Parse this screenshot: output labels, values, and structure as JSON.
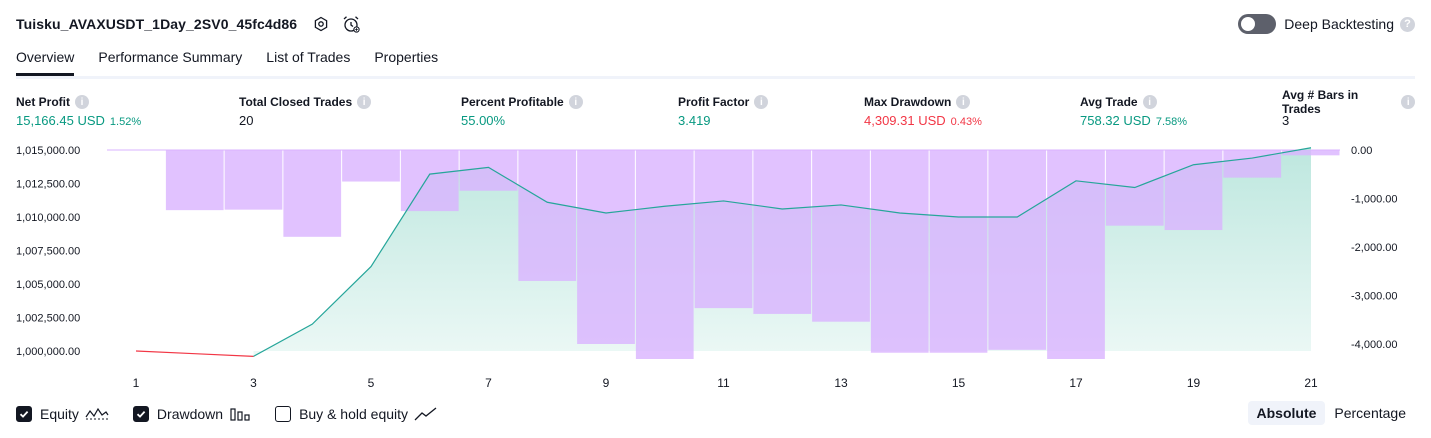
{
  "header": {
    "title": "Tuisku_AVAXUSDT_1Day_2SV0_45fc4d86",
    "deep_backtesting_label": "Deep Backtesting",
    "deep_backtesting_on": false,
    "help_glyph": "?"
  },
  "tabs": [
    {
      "label": "Overview",
      "active": true
    },
    {
      "label": "Performance Summary",
      "active": false
    },
    {
      "label": "List of Trades",
      "active": false
    },
    {
      "label": "Properties",
      "active": false
    }
  ],
  "metrics": [
    {
      "label": "Net Profit",
      "value": "15,166.45 USD",
      "pct": "1.52%",
      "color": "green"
    },
    {
      "label": "Total Closed Trades",
      "value": "20",
      "pct": "",
      "color": "dark"
    },
    {
      "label": "Percent Profitable",
      "value": "55.00%",
      "pct": "",
      "color": "green"
    },
    {
      "label": "Profit Factor",
      "value": "3.419",
      "pct": "",
      "color": "green"
    },
    {
      "label": "Max Drawdown",
      "value": "4,309.31 USD",
      "pct": "0.43%",
      "color": "red"
    },
    {
      "label": "Avg Trade",
      "value": "758.32 USD",
      "pct": "7.58%",
      "color": "green"
    },
    {
      "label": "Avg # Bars in Trades",
      "value": "3",
      "pct": "",
      "color": "dark"
    }
  ],
  "info_glyph": "i",
  "colors": {
    "equity_line": "#26a69a",
    "equity_loss_line": "#f23645",
    "equity_fill": "#b2e3d9",
    "drawdown_bar": "#d9b3ff",
    "text": "#131722",
    "green": "#089981",
    "red": "#f23645"
  },
  "chart_data": {
    "type": "area",
    "x": [
      1,
      2,
      3,
      4,
      5,
      6,
      7,
      8,
      9,
      10,
      11,
      12,
      13,
      14,
      15,
      16,
      17,
      18,
      19,
      20,
      21
    ],
    "x_tick_labels": [
      "1",
      "3",
      "5",
      "7",
      "9",
      "11",
      "13",
      "15",
      "17",
      "19",
      "21"
    ],
    "left_axis": {
      "ticks": [
        "1,015,000.00",
        "1,012,500.00",
        "1,010,000.00",
        "1,007,500.00",
        "1,005,000.00",
        "1,002,500.00",
        "1,000,000.00"
      ],
      "range": [
        1000000,
        1015000
      ]
    },
    "right_axis": {
      "ticks": [
        "0.00",
        "-1,000.00",
        "-2,000.00",
        "-3,000.00",
        "-4,000.00"
      ],
      "range": [
        -4309.31,
        0
      ]
    },
    "series": [
      {
        "name": "Equity",
        "values": [
          1000000,
          999800,
          999600,
          1002000,
          1006300,
          1013200,
          1013700,
          1011100,
          1010300,
          1010800,
          1011200,
          1010600,
          1010900,
          1010300,
          1010000,
          1010000,
          1012700,
          1012200,
          1013900,
          1014400,
          1015166.45
        ]
      },
      {
        "name": "Drawdown",
        "values": [
          0,
          -1240,
          -1230,
          -1790,
          -650,
          -1260,
          -840,
          -2700,
          -4000,
          -4309.31,
          -3260,
          -3380,
          -3540,
          -4180,
          -4180,
          -4120,
          -4309.31,
          -1560,
          -1650,
          -570,
          -110
        ]
      }
    ]
  },
  "legend": [
    {
      "label": "Equity",
      "checked": true,
      "icon": "equity-wave-icon"
    },
    {
      "label": "Drawdown",
      "checked": true,
      "icon": "drawdown-bars-icon"
    },
    {
      "label": "Buy & hold equity",
      "checked": false,
      "icon": "trend-line-icon"
    }
  ],
  "scale_toggle": [
    {
      "label": "Absolute",
      "active": true
    },
    {
      "label": "Percentage",
      "active": false
    }
  ]
}
